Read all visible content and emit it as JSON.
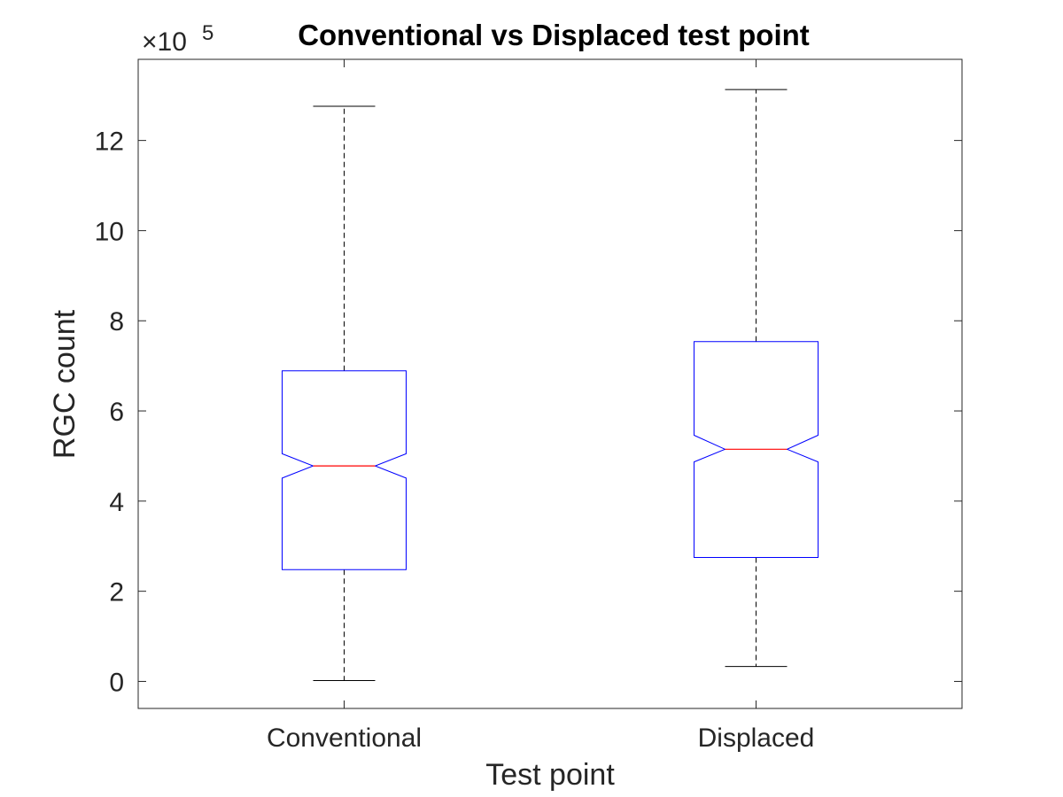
{
  "chart_data": {
    "type": "boxplot",
    "title": "Conventional vs Displaced test point",
    "xlabel": "Test point",
    "ylabel": "RGC count",
    "y_exponent_label": "×10",
    "y_exponent_power": "5",
    "y_multiplier": 100000,
    "ylim": [
      -0.6,
      13.8
    ],
    "yticks": [
      0,
      2,
      4,
      6,
      8,
      10,
      12
    ],
    "ytick_labels": [
      "0",
      "2",
      "4",
      "6",
      "8",
      "10",
      "12"
    ],
    "categories": [
      "Conventional",
      "Displaced"
    ],
    "notched": true,
    "grid": false,
    "boxes": [
      {
        "category": "Conventional",
        "whisker_low": 0.02,
        "q1": 2.48,
        "notch_low": 4.51,
        "median": 4.78,
        "notch_high": 5.05,
        "q3": 6.89,
        "whisker_high": 12.76
      },
      {
        "category": "Displaced",
        "whisker_low": 0.33,
        "q1": 2.75,
        "notch_low": 4.87,
        "median": 5.15,
        "notch_high": 5.46,
        "q3": 7.54,
        "whisker_high": 13.13
      }
    ],
    "colors": {
      "box": "#0000ff",
      "median": "#ff0000",
      "whisker": "#000000",
      "axes": "#262626"
    }
  }
}
